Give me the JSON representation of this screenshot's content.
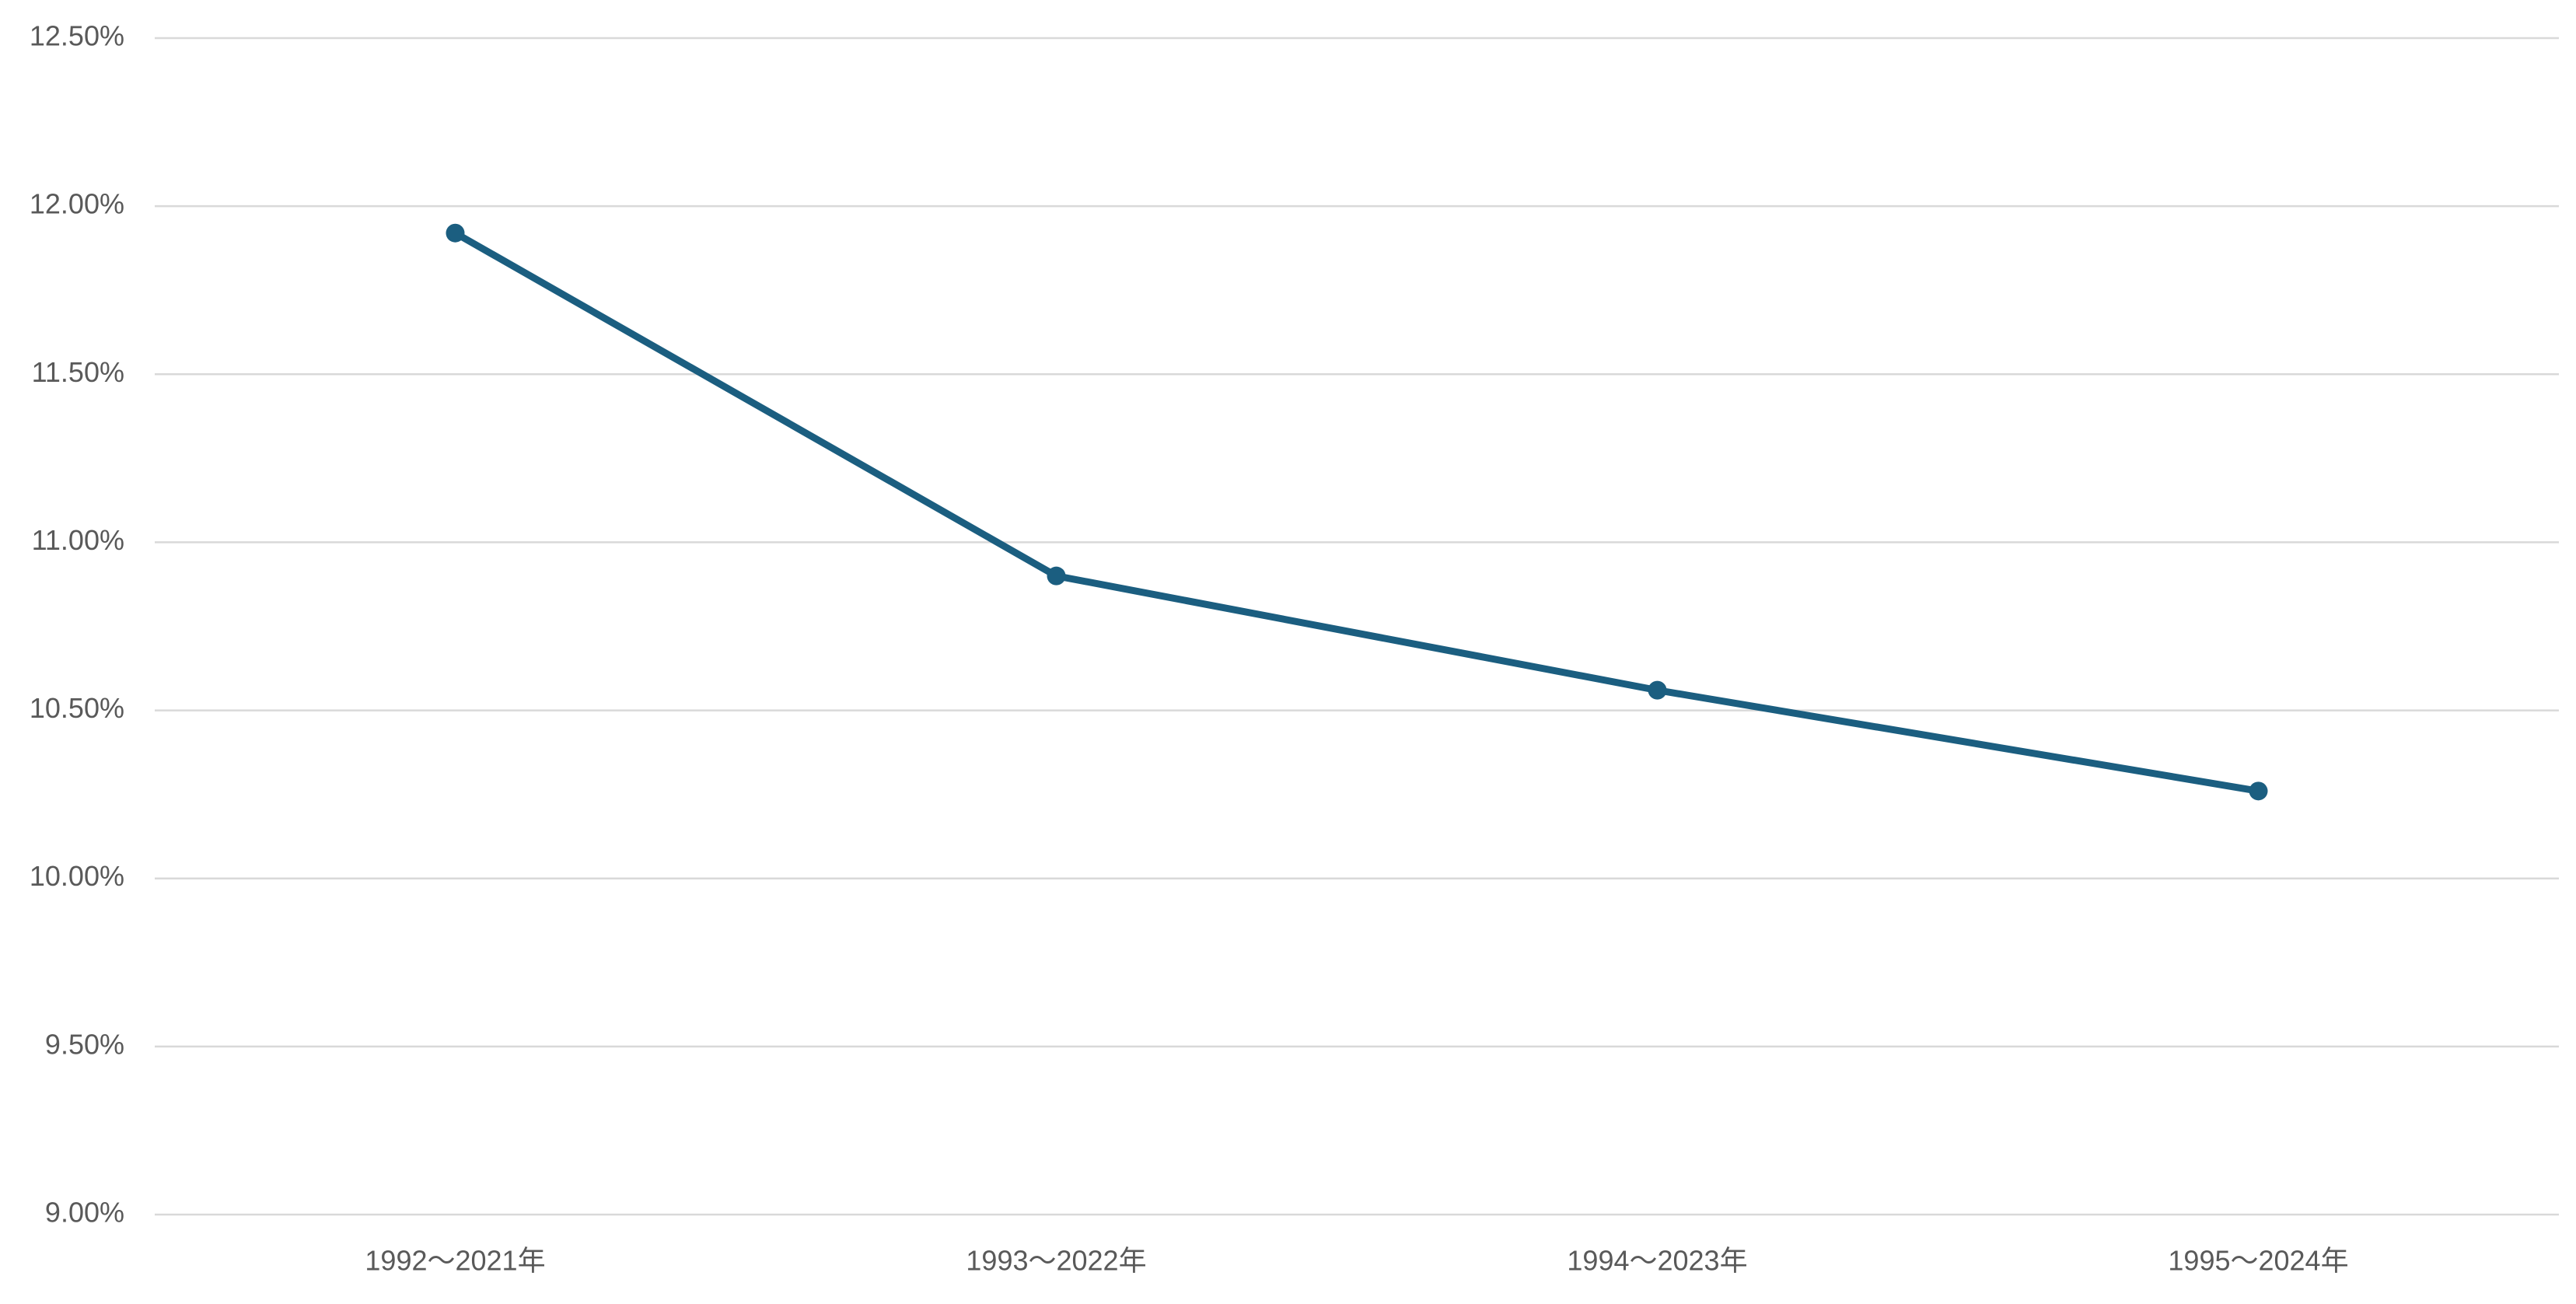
{
  "chart_data": {
    "type": "line",
    "categories": [
      "1992〜2021年",
      "1993〜2022年",
      "1994〜2023年",
      "1995〜2024年"
    ],
    "values": [
      11.92,
      10.9,
      10.56,
      10.26
    ],
    "color": "#1b5e80",
    "ylim": [
      9,
      12.5
    ],
    "yticks": [
      {
        "value": 9,
        "label": "9.00%"
      },
      {
        "value": 9.5,
        "label": "9.50%"
      },
      {
        "value": 10,
        "label": "10.00%"
      },
      {
        "value": 10.5,
        "label": "10.50%"
      },
      {
        "value": 11,
        "label": "11.00%"
      },
      {
        "value": 11.5,
        "label": "11.50%"
      },
      {
        "value": 12,
        "label": "12.00%"
      },
      {
        "value": 12.5,
        "label": "12.50%"
      }
    ],
    "grid": true
  }
}
